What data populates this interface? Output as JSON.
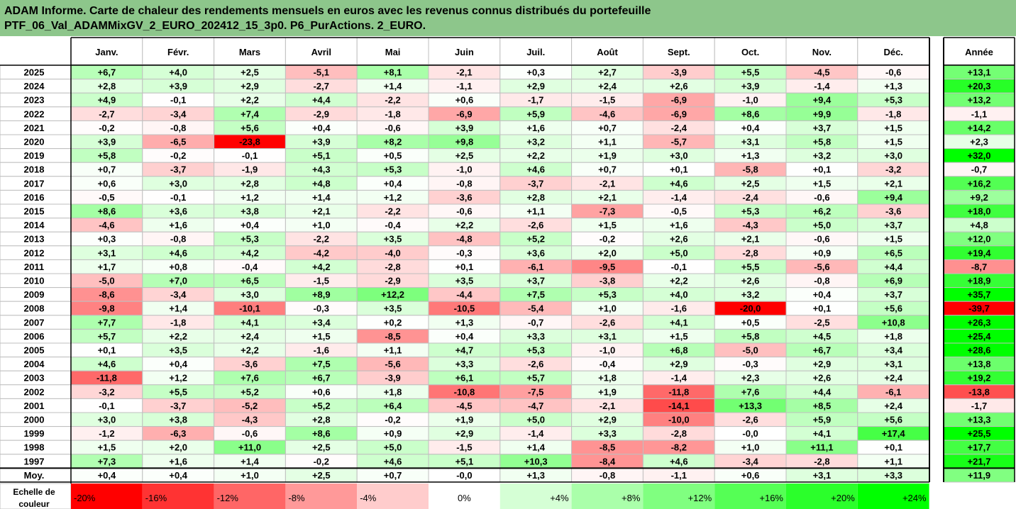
{
  "title": {
    "line1": "ADAM Informe. Carte de chaleur des rendements mensuels en euros avec les revenus connus distribués du portefeuille",
    "line2": "PTF_06_Val_ADAMMixGV_2_EURO_202412_15_3p0. P6_PurActions. 2_EURO."
  },
  "colors": {
    "title_bg": "#8dc68b",
    "negative_max": "#ff0000",
    "neutral": "#ffffff",
    "positive_max": "#00ff00"
  },
  "chart_data": {
    "type": "heatmap",
    "columns": [
      "Janv.",
      "Févr.",
      "Mars",
      "Avril",
      "Mai",
      "Juin",
      "Juil.",
      "Août",
      "Sept.",
      "Oct.",
      "Nov.",
      "Déc."
    ],
    "year_column": "Année",
    "rows": [
      {
        "year": "2025",
        "values": [
          "+6,7",
          "+4,0",
          "+2,5",
          "-5,1",
          "+8,1",
          "-2,1",
          "+0,3",
          "+2,7",
          "-3,9",
          "+5,5",
          "-4,5",
          "-0,6"
        ],
        "annual": "+13,1"
      },
      {
        "year": "2024",
        "values": [
          "+2,8",
          "+3,9",
          "+2,9",
          "-2,7",
          "+1,4",
          "-1,1",
          "+2,9",
          "+2,4",
          "+2,6",
          "+3,9",
          "-1,4",
          "+1,3"
        ],
        "annual": "+20,3"
      },
      {
        "year": "2023",
        "values": [
          "+4,9",
          "-0,1",
          "+2,2",
          "+4,4",
          "-2,2",
          "+0,6",
          "-1,7",
          "-1,5",
          "-6,9",
          "-1,0",
          "+9,4",
          "+5,3"
        ],
        "annual": "+13,2"
      },
      {
        "year": "2022",
        "values": [
          "-2,7",
          "-3,4",
          "+7,4",
          "-2,9",
          "-1,8",
          "-6,9",
          "+5,9",
          "-4,6",
          "-6,9",
          "+8,6",
          "+9,9",
          "-1,8"
        ],
        "annual": "-1,1"
      },
      {
        "year": "2021",
        "values": [
          "-0,2",
          "-0,8",
          "+5,6",
          "+0,4",
          "-0,6",
          "+3,9",
          "+1,6",
          "+0,7",
          "-2,4",
          "+0,4",
          "+3,7",
          "+1,5"
        ],
        "annual": "+14,2"
      },
      {
        "year": "2020",
        "values": [
          "+3,9",
          "-6,5",
          "-23,8",
          "+3,9",
          "+8,2",
          "+9,8",
          "+3,2",
          "+1,1",
          "-5,7",
          "+3,1",
          "+5,8",
          "+1,5"
        ],
        "annual": "+2,3"
      },
      {
        "year": "2019",
        "values": [
          "+5,8",
          "-0,2",
          "-0,1",
          "+5,1",
          "+0,5",
          "+2,5",
          "+2,2",
          "+1,9",
          "+3,0",
          "+1,3",
          "+3,2",
          "+3,0"
        ],
        "annual": "+32,0"
      },
      {
        "year": "2018",
        "values": [
          "+0,7",
          "-3,7",
          "-1,9",
          "+4,3",
          "+5,3",
          "-1,0",
          "+4,6",
          "+0,7",
          "+0,1",
          "-5,8",
          "+0,1",
          "-3,2"
        ],
        "annual": "-0,7"
      },
      {
        "year": "2017",
        "values": [
          "+0,6",
          "+3,0",
          "+2,8",
          "+4,8",
          "+0,4",
          "-0,8",
          "-3,7",
          "-2,1",
          "+4,6",
          "+2,5",
          "+1,5",
          "+2,1"
        ],
        "annual": "+16,2"
      },
      {
        "year": "2016",
        "values": [
          "-0,5",
          "-0,1",
          "+1,2",
          "+1,4",
          "+1,2",
          "-3,6",
          "+2,8",
          "+2,1",
          "-1,4",
          "-2,4",
          "-0,6",
          "+9,4"
        ],
        "annual": "+9,2"
      },
      {
        "year": "2015",
        "values": [
          "+8,6",
          "+3,6",
          "+3,8",
          "+2,1",
          "-2,2",
          "-0,6",
          "+1,1",
          "-7,3",
          "-0,5",
          "+5,3",
          "+6,2",
          "-3,6"
        ],
        "annual": "+18,0"
      },
      {
        "year": "2014",
        "values": [
          "-4,6",
          "+1,6",
          "+0,4",
          "+1,0",
          "-0,4",
          "+2,2",
          "-2,6",
          "+1,5",
          "+1,6",
          "-4,3",
          "+5,0",
          "+3,7"
        ],
        "annual": "+4,8"
      },
      {
        "year": "2013",
        "values": [
          "+0,3",
          "-0,8",
          "+5,3",
          "-2,2",
          "+3,5",
          "-4,8",
          "+5,2",
          "-0,2",
          "+2,6",
          "+2,1",
          "-0,6",
          "+1,5"
        ],
        "annual": "+12,0"
      },
      {
        "year": "2012",
        "values": [
          "+3,1",
          "+4,6",
          "+4,2",
          "-4,2",
          "-4,0",
          "-0,3",
          "+3,6",
          "+2,0",
          "+5,0",
          "-2,8",
          "+0,9",
          "+6,5"
        ],
        "annual": "+19,4"
      },
      {
        "year": "2011",
        "values": [
          "+1,7",
          "+0,8",
          "-0,4",
          "+4,2",
          "-2,8",
          "+0,1",
          "-6,1",
          "-9,5",
          "-0,1",
          "+5,5",
          "-5,6",
          "+4,4"
        ],
        "annual": "-8,7"
      },
      {
        "year": "2010",
        "values": [
          "-5,0",
          "+7,0",
          "+6,5",
          "-1,5",
          "-2,9",
          "+3,5",
          "+3,7",
          "-3,8",
          "+2,2",
          "+2,6",
          "-0,8",
          "+6,9"
        ],
        "annual": "+18,9"
      },
      {
        "year": "2009",
        "values": [
          "-8,6",
          "-3,4",
          "+3,0",
          "+8,9",
          "+12,2",
          "-4,4",
          "+7,5",
          "+5,3",
          "+4,0",
          "+3,2",
          "+0,4",
          "+3,7"
        ],
        "annual": "+35,7"
      },
      {
        "year": "2008",
        "values": [
          "-9,8",
          "+1,4",
          "-10,1",
          "-0,3",
          "+3,5",
          "-10,5",
          "-5,4",
          "+1,0",
          "-1,6",
          "-20,0",
          "+0,1",
          "+5,6"
        ],
        "annual": "-39,7"
      },
      {
        "year": "2007",
        "values": [
          "+7,7",
          "-1,8",
          "+4,1",
          "+3,4",
          "+0,2",
          "+1,3",
          "-0,7",
          "-2,6",
          "+4,1",
          "+0,5",
          "-2,5",
          "+10,8"
        ],
        "annual": "+26,3"
      },
      {
        "year": "2006",
        "values": [
          "+5,7",
          "+2,2",
          "+2,4",
          "+1,5",
          "-8,5",
          "+0,4",
          "+3,3",
          "+3,1",
          "+1,5",
          "+5,8",
          "+4,5",
          "+1,8"
        ],
        "annual": "+25,4"
      },
      {
        "year": "2005",
        "values": [
          "+0,1",
          "+3,5",
          "+2,2",
          "-1,6",
          "+1,1",
          "+4,7",
          "+5,3",
          "-1,0",
          "+6,8",
          "-5,0",
          "+6,7",
          "+3,4"
        ],
        "annual": "+28,6"
      },
      {
        "year": "2004",
        "values": [
          "+4,6",
          "+0,4",
          "-3,6",
          "+7,5",
          "-5,6",
          "+3,3",
          "-2,6",
          "-0,4",
          "+2,9",
          "-0,3",
          "+2,9",
          "+3,1"
        ],
        "annual": "+13,8"
      },
      {
        "year": "2003",
        "values": [
          "-11,8",
          "+1,2",
          "+7,6",
          "+6,7",
          "-3,9",
          "+6,1",
          "+5,7",
          "+1,8",
          "-1,4",
          "+2,3",
          "+2,6",
          "+2,4"
        ],
        "annual": "+19,2"
      },
      {
        "year": "2002",
        "values": [
          "-3,2",
          "+5,5",
          "+5,2",
          "+0,6",
          "+1,8",
          "-10,8",
          "-7,5",
          "+1,9",
          "-11,8",
          "+7,6",
          "+4,4",
          "-6,1"
        ],
        "annual": "-13,8"
      },
      {
        "year": "2001",
        "values": [
          "-0,1",
          "-3,7",
          "-5,2",
          "+5,2",
          "+6,4",
          "-4,5",
          "-4,7",
          "-2,1",
          "-14,1",
          "+13,3",
          "+8,5",
          "+2,4"
        ],
        "annual": "-1,7"
      },
      {
        "year": "2000",
        "values": [
          "+3,0",
          "+3,8",
          "-4,3",
          "+2,8",
          "-0,2",
          "+1,9",
          "+5,0",
          "+2,9",
          "-10,0",
          "-2,6",
          "+5,9",
          "+5,6"
        ],
        "annual": "+13,3"
      },
      {
        "year": "1999",
        "values": [
          "-1,2",
          "-6,3",
          "-0,6",
          "+8,6",
          "+0,9",
          "+2,9",
          "-1,4",
          "+3,3",
          "-2,8",
          "-0,0",
          "+4,1",
          "+17,4"
        ],
        "annual": "+25,5"
      },
      {
        "year": "1998",
        "values": [
          "+1,5",
          "+2,0",
          "+11,0",
          "+2,5",
          "+5,0",
          "-1,5",
          "+1,4",
          "-8,5",
          "-8,2",
          "+1,0",
          "+11,1",
          "+0,1"
        ],
        "annual": "+17,7"
      },
      {
        "year": "1997",
        "values": [
          "+7,3",
          "+1,6",
          "+1,4",
          "-0,2",
          "+4,6",
          "+5,1",
          "+10,3",
          "-8,4",
          "+4,6",
          "-3,4",
          "-2,8",
          "+1,1"
        ],
        "annual": "+21,7"
      }
    ],
    "average": {
      "label": "Moy.",
      "values": [
        "+0,4",
        "+0,4",
        "+1,0",
        "+2,5",
        "+0,7",
        "-0,0",
        "+1,3",
        "-0,8",
        "-1,1",
        "+0,6",
        "+3,1",
        "+3,3"
      ],
      "annual": "+11,9"
    },
    "scale": {
      "label_line1": "Echelle de",
      "label_line2": "couleur",
      "stops": [
        "-20%",
        "-16%",
        "-12%",
        "-8%",
        "-4%",
        "0%",
        "+4%",
        "+8%",
        "+12%",
        "+16%",
        "+20%",
        "+24%"
      ],
      "stop_values": [
        -20,
        -16,
        -12,
        -8,
        -4,
        0,
        4,
        8,
        12,
        16,
        20,
        24
      ]
    }
  }
}
